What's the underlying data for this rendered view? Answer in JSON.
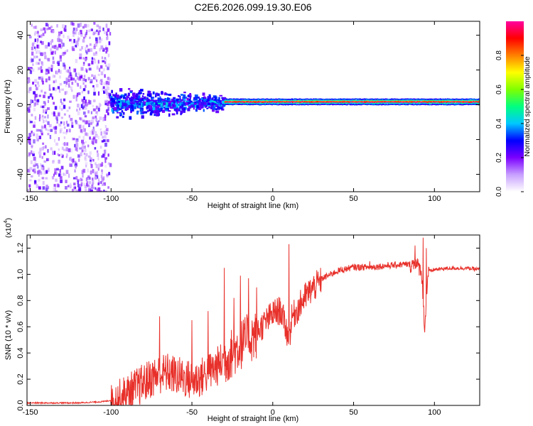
{
  "title": "C2E6.2026.099.19.30.E06",
  "chart_data": [
    {
      "type": "heatmap",
      "name": "spectrogram",
      "xlabel": "Height of straight line (km)",
      "ylabel": "Frequency (Hz)",
      "xlim": [
        -152,
        128
      ],
      "ylim": [
        -50,
        48
      ],
      "xticks": [
        -150,
        -100,
        -50,
        0,
        50,
        100
      ],
      "yticks": [
        -40,
        -20,
        0,
        20,
        40
      ],
      "description_regions": [
        {
          "x_range": [
            -152,
            -101
          ],
          "freq_range": [
            -50,
            48
          ],
          "amplitude_range": [
            0.05,
            0.25
          ],
          "pattern": "scattered noise"
        },
        {
          "x_range": [
            -101,
            -30
          ],
          "freq_range": [
            -10,
            10
          ],
          "amplitude_range": [
            0.2,
            0.45
          ],
          "pattern": "broadened band"
        },
        {
          "x_range": [
            -30,
            128
          ],
          "freq_range": [
            -2,
            4
          ],
          "amplitude_range": [
            0.5,
            1.0
          ],
          "pattern": "narrow tone near 2 Hz"
        }
      ],
      "colorbar": {
        "label": "Normalized spectral amplitude",
        "range": [
          0,
          1
        ],
        "ticks": [
          "0.0",
          "0.2",
          "0.4",
          "0.6",
          "0.8"
        ],
        "colors": [
          "#ffffff",
          "#c8a0ff",
          "#7b00ff",
          "#0000ff",
          "#00c8ff",
          "#00ff80",
          "#80ff00",
          "#ffff00",
          "#ff8000",
          "#ff0000",
          "#ff00a0"
        ]
      }
    },
    {
      "type": "line",
      "name": "snr",
      "xlabel": "Height of straight line (km)",
      "ylabel": "SNR (10 * v/v)",
      "yscale_label": "(x10",
      "yscale_exp": "4",
      "xlim": [
        -152,
        128
      ],
      "ylim": [
        0,
        1.3
      ],
      "xticks": [
        -150,
        -100,
        -50,
        0,
        50,
        100
      ],
      "yticks": [
        "0.0",
        "0.2",
        "0.4",
        "0.6",
        "0.8",
        "1.0",
        "1.2"
      ],
      "color": "#e8302a",
      "series": [
        {
          "name": "SNR",
          "x": [
            -152,
            -140,
            -120,
            -105,
            -100,
            -95,
            -90,
            -85,
            -80,
            -75,
            -70,
            -65,
            -60,
            -55,
            -50,
            -45,
            -40,
            -35,
            -30,
            -25,
            -20,
            -15,
            -10,
            -5,
            0,
            5,
            8,
            10,
            12,
            15,
            20,
            25,
            30,
            35,
            40,
            50,
            60,
            70,
            80,
            85,
            88,
            90,
            92,
            94,
            96,
            100,
            110,
            120,
            128
          ],
          "y": [
            0.02,
            0.02,
            0.02,
            0.03,
            0.04,
            0.08,
            0.12,
            0.16,
            0.2,
            0.24,
            0.27,
            0.28,
            0.26,
            0.24,
            0.22,
            0.24,
            0.28,
            0.32,
            0.38,
            0.44,
            0.5,
            0.55,
            0.58,
            0.65,
            0.72,
            0.75,
            0.62,
            0.52,
            0.7,
            0.75,
            0.85,
            0.92,
            0.97,
            1.0,
            1.03,
            1.06,
            1.06,
            1.07,
            1.08,
            1.08,
            1.1,
            1.07,
            1.04,
            0.6,
            1.02,
            1.04,
            1.05,
            1.05,
            1.04
          ]
        },
        {
          "name": "SNR peaks",
          "x": [
            -70,
            -50,
            -40,
            -30,
            -24,
            -20,
            -15,
            -10,
            10,
            60,
            88,
            93,
            95
          ],
          "y": [
            0.68,
            0.65,
            0.72,
            1.05,
            0.82,
            0.99,
            0.97,
            0.9,
            1.23,
            1.1,
            1.22,
            1.28,
            1.2
          ]
        }
      ]
    }
  ]
}
